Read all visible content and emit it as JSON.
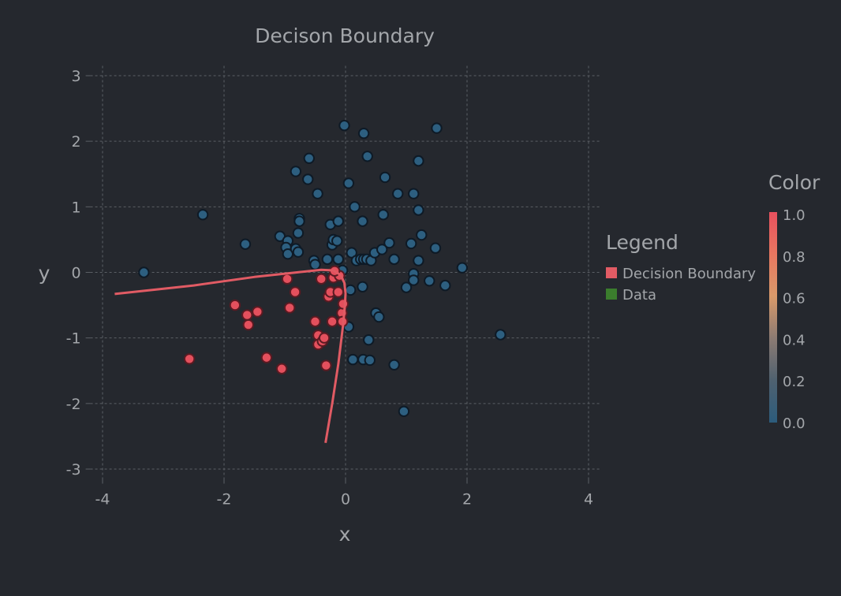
{
  "chart_data": {
    "type": "scatter",
    "title": "Decison Boundary",
    "xlabel": "x",
    "ylabel": "y",
    "xlim": [
      -4.2,
      4.2
    ],
    "ylim": [
      -3.15,
      3.15
    ],
    "xticks": [
      -4,
      -2,
      0,
      2,
      4
    ],
    "yticks": [
      -3,
      -2,
      -1,
      0,
      1,
      2,
      3
    ],
    "grid": true,
    "legend": {
      "title": "Legend",
      "placement": "right",
      "entries": [
        {
          "name": "Decision Boundary",
          "color": "#e15b64"
        },
        {
          "name": "Data",
          "color": "#3b7d2d"
        }
      ]
    },
    "colorbar": {
      "title": "Color",
      "range": [
        0.0,
        1.0
      ],
      "ticks": [
        "1.0",
        "0.8",
        "0.6",
        "0.4",
        "0.2",
        "0.0"
      ],
      "low_color": "#2c5c7c",
      "high_color": "#e8505e"
    },
    "colors": {
      "class0_fill": "#2d5f80",
      "class0_stroke": "#0e1a26",
      "class1_fill": "#e4505d",
      "class1_stroke": "#5a1a22",
      "boundary": "#e15b64"
    },
    "series": [
      {
        "color_value": 0,
        "points": [
          [
            -3.32,
            0.0
          ],
          [
            -2.35,
            0.88
          ],
          [
            -1.65,
            0.43
          ],
          [
            -1.08,
            0.55
          ],
          [
            -0.95,
            0.48
          ],
          [
            -0.98,
            0.38
          ],
          [
            -0.95,
            0.28
          ],
          [
            -0.82,
            0.36
          ],
          [
            -0.78,
            0.31
          ],
          [
            -0.78,
            0.6
          ],
          [
            -0.76,
            0.82
          ],
          [
            -0.76,
            0.78
          ],
          [
            -0.52,
            0.18
          ],
          [
            -0.5,
            0.12
          ],
          [
            -0.3,
            0.2
          ],
          [
            -0.25,
            0.73
          ],
          [
            -0.22,
            0.42
          ],
          [
            -0.2,
            0.5
          ],
          [
            -0.14,
            0.48
          ],
          [
            -0.12,
            0.78
          ],
          [
            -0.12,
            0.2
          ],
          [
            -0.05,
            0.03
          ],
          [
            0.1,
            0.3
          ],
          [
            0.18,
            0.18
          ],
          [
            0.25,
            0.2
          ],
          [
            0.28,
            0.78
          ],
          [
            0.3,
            0.2
          ],
          [
            0.35,
            0.2
          ],
          [
            0.42,
            0.18
          ],
          [
            0.48,
            0.3
          ],
          [
            0.6,
            0.35
          ],
          [
            0.72,
            0.45
          ],
          [
            0.8,
            0.2
          ],
          [
            0.62,
            0.88
          ],
          [
            0.15,
            1.0
          ],
          [
            -0.46,
            1.2
          ],
          [
            -0.62,
            1.42
          ],
          [
            -0.6,
            1.74
          ],
          [
            -0.82,
            1.54
          ],
          [
            0.05,
            1.36
          ],
          [
            0.65,
            1.45
          ],
          [
            0.86,
            1.2
          ],
          [
            1.12,
            1.2
          ],
          [
            1.2,
            0.95
          ],
          [
            1.2,
            1.7
          ],
          [
            1.5,
            2.2
          ],
          [
            0.3,
            2.12
          ],
          [
            0.36,
            1.77
          ],
          [
            -0.02,
            2.24
          ],
          [
            1.08,
            0.44
          ],
          [
            1.25,
            0.57
          ],
          [
            1.2,
            0.18
          ],
          [
            1.48,
            0.37
          ],
          [
            1.12,
            -0.02
          ],
          [
            1.12,
            -0.12
          ],
          [
            1.38,
            -0.13
          ],
          [
            1.64,
            -0.2
          ],
          [
            1.92,
            0.07
          ],
          [
            1.0,
            -0.23
          ],
          [
            0.28,
            -0.22
          ],
          [
            0.08,
            -0.27
          ],
          [
            0.5,
            -0.62
          ],
          [
            0.55,
            -0.68
          ],
          [
            0.05,
            -0.83
          ],
          [
            0.38,
            -1.03
          ],
          [
            0.12,
            -1.33
          ],
          [
            0.29,
            -1.33
          ],
          [
            0.4,
            -1.34
          ],
          [
            0.8,
            -1.41
          ],
          [
            0.96,
            -2.12
          ],
          [
            2.55,
            -0.95
          ]
        ]
      },
      {
        "color_value": 1,
        "points": [
          [
            -2.57,
            -1.32
          ],
          [
            -1.82,
            -0.5
          ],
          [
            -1.62,
            -0.65
          ],
          [
            -1.6,
            -0.8
          ],
          [
            -1.45,
            -0.6
          ],
          [
            -1.3,
            -1.3
          ],
          [
            -1.05,
            -1.47
          ],
          [
            -0.96,
            -0.1
          ],
          [
            -0.92,
            -0.54
          ],
          [
            -0.83,
            -0.3
          ],
          [
            -0.5,
            -0.75
          ],
          [
            -0.45,
            -0.96
          ],
          [
            -0.45,
            -1.1
          ],
          [
            -0.38,
            -1.05
          ],
          [
            -0.35,
            -1.0
          ],
          [
            -0.4,
            -0.1
          ],
          [
            -0.32,
            -1.42
          ],
          [
            -0.28,
            -0.37
          ],
          [
            -0.25,
            -0.3
          ],
          [
            -0.2,
            -0.08
          ],
          [
            -0.22,
            -0.75
          ],
          [
            -0.12,
            -0.3
          ],
          [
            -0.06,
            -0.62
          ],
          [
            -0.04,
            -0.48
          ],
          [
            -0.05,
            -0.75
          ],
          [
            -0.1,
            -0.05
          ],
          [
            -0.18,
            0.02
          ]
        ]
      }
    ],
    "boundary": [
      [
        -3.8,
        -0.33
      ],
      [
        -2.5,
        -0.2
      ],
      [
        -1.5,
        -0.07
      ],
      [
        -0.8,
        0.0
      ],
      [
        -0.4,
        0.04
      ],
      [
        -0.2,
        0.03
      ],
      [
        -0.08,
        -0.04
      ],
      [
        -0.02,
        -0.16
      ],
      [
        0.0,
        -0.32
      ],
      [
        -0.01,
        -0.5
      ],
      [
        -0.04,
        -0.8
      ],
      [
        -0.12,
        -1.4
      ],
      [
        -0.22,
        -2.0
      ],
      [
        -0.33,
        -2.6
      ]
    ]
  }
}
